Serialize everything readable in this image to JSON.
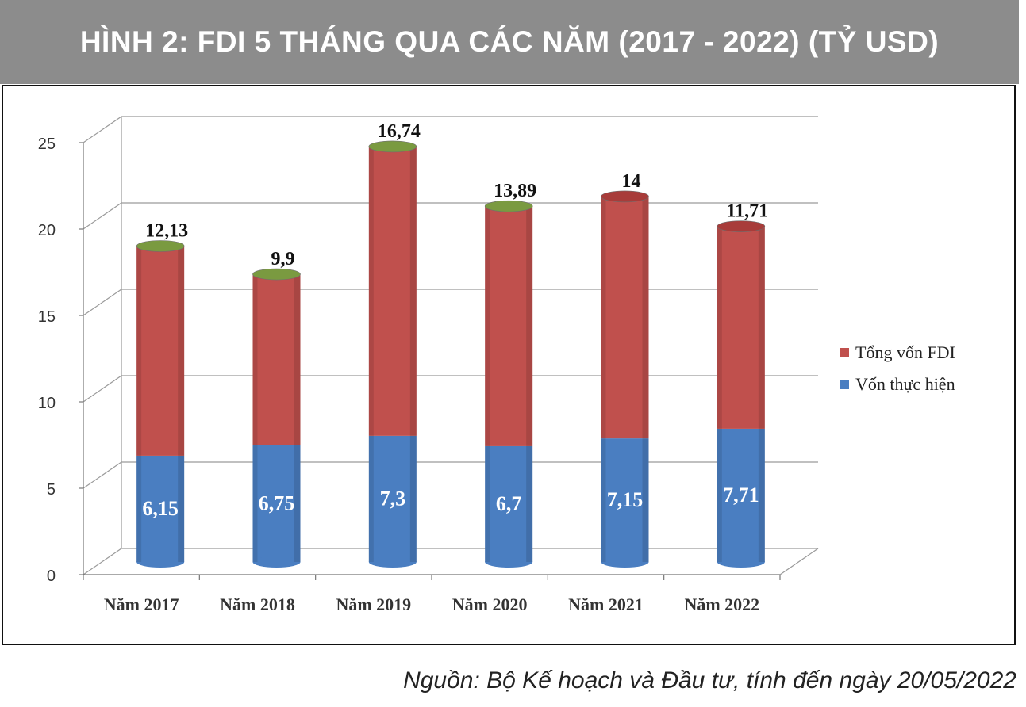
{
  "title": "HÌNH 2: FDI 5 THÁNG QUA CÁC NĂM (2017 - 2022) (TỶ USD)",
  "source": "Nguồn: Bộ Kế hoạch và Đầu tư, tính đến ngày 20/05/2022",
  "chart_data": {
    "type": "bar",
    "stacked": true,
    "three_d": true,
    "categories": [
      "Năm 2017",
      "Năm 2018",
      "Năm 2019",
      "Năm 2020",
      "Năm 2021",
      "Năm 2022"
    ],
    "series": [
      {
        "name": "Vốn thực hiện",
        "color": "#4a7ec1",
        "values": [
          6.15,
          6.75,
          7.3,
          6.7,
          7.15,
          7.71
        ],
        "labels": [
          "6,15",
          "6,75",
          "7,3",
          "6,7",
          "7,15",
          "7,71"
        ]
      },
      {
        "name": "Tổng vốn FDI",
        "color": "#c0504d",
        "values": [
          12.13,
          9.9,
          16.74,
          13.89,
          14,
          11.71
        ],
        "labels": [
          "12,13",
          "9,9",
          "16,74",
          "13,89",
          "14",
          "11,71"
        ]
      }
    ],
    "y_ticks": [
      "0",
      "5",
      "10",
      "15",
      "20",
      "25"
    ],
    "ylim": [
      0,
      25
    ],
    "grid": true,
    "legend_position": "right",
    "top_cap_colors": [
      "#7a9a40",
      "#7a9a40",
      "#7a9a40",
      "#7a9a40",
      "#a83c3a",
      "#a83c3a"
    ]
  }
}
